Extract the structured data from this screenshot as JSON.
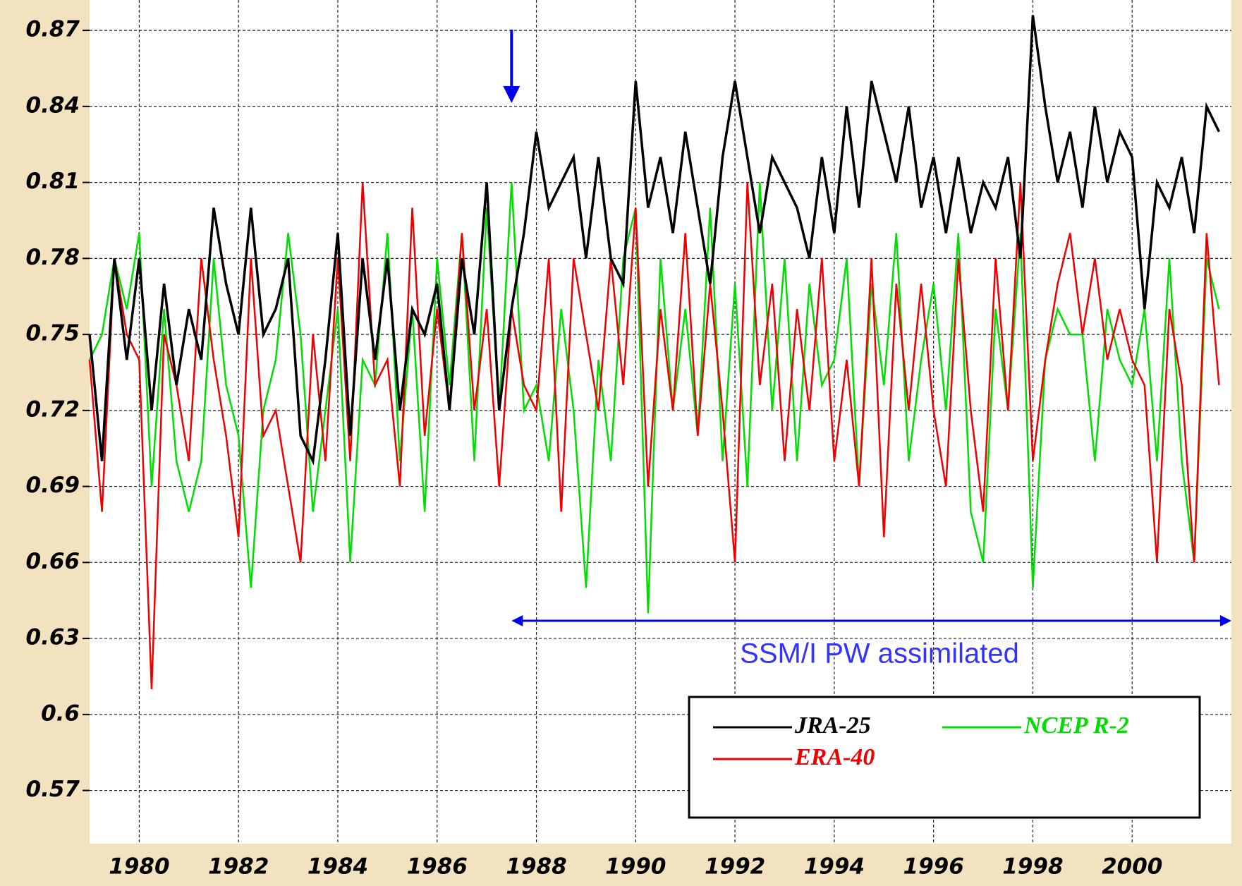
{
  "chart_data": {
    "type": "line",
    "x": [
      1979,
      1979.25,
      1979.5,
      1979.75,
      1980,
      1980.25,
      1980.5,
      1980.75,
      1981,
      1981.25,
      1981.5,
      1981.75,
      1982,
      1982.25,
      1982.5,
      1982.75,
      1983,
      1983.25,
      1983.5,
      1983.75,
      1984,
      1984.25,
      1984.5,
      1984.75,
      1985,
      1985.25,
      1985.5,
      1985.75,
      1986,
      1986.25,
      1986.5,
      1986.75,
      1987,
      1987.25,
      1987.5,
      1987.75,
      1988,
      1988.25,
      1988.5,
      1988.75,
      1989,
      1989.25,
      1989.5,
      1989.75,
      1990,
      1990.25,
      1990.5,
      1990.75,
      1991,
      1991.25,
      1991.5,
      1991.75,
      1992,
      1992.25,
      1992.5,
      1992.75,
      1993,
      1993.25,
      1993.5,
      1993.75,
      1994,
      1994.25,
      1994.5,
      1994.75,
      1995,
      1995.25,
      1995.5,
      1995.75,
      1996,
      1996.25,
      1996.5,
      1996.75,
      1997,
      1997.25,
      1997.5,
      1997.75,
      1998,
      1998.25,
      1998.5,
      1998.75,
      1999,
      1999.25,
      1999.5,
      1999.75,
      2000,
      2000.25,
      2000.5,
      2000.75,
      2001,
      2001.25,
      2001.5,
      2001.75
    ],
    "series": [
      {
        "name": "JRA-25",
        "color": "#000000",
        "values": [
          0.75,
          0.7,
          0.78,
          0.74,
          0.78,
          0.72,
          0.77,
          0.73,
          0.76,
          0.74,
          0.8,
          0.77,
          0.75,
          0.8,
          0.75,
          0.76,
          0.78,
          0.71,
          0.7,
          0.74,
          0.79,
          0.71,
          0.78,
          0.74,
          0.78,
          0.72,
          0.76,
          0.75,
          0.77,
          0.72,
          0.78,
          0.75,
          0.81,
          0.72,
          0.76,
          0.79,
          0.83,
          0.8,
          0.81,
          0.82,
          0.78,
          0.82,
          0.78,
          0.77,
          0.85,
          0.8,
          0.82,
          0.79,
          0.83,
          0.8,
          0.77,
          0.82,
          0.85,
          0.82,
          0.79,
          0.82,
          0.81,
          0.8,
          0.78,
          0.82,
          0.79,
          0.84,
          0.8,
          0.85,
          0.83,
          0.81,
          0.84,
          0.8,
          0.82,
          0.79,
          0.82,
          0.79,
          0.81,
          0.8,
          0.82,
          0.78,
          0.876,
          0.84,
          0.81,
          0.83,
          0.8,
          0.84,
          0.81,
          0.83,
          0.82,
          0.76,
          0.81,
          0.8,
          0.82,
          0.79,
          0.84,
          0.83
        ]
      },
      {
        "name": "ERA-40",
        "color": "#ee0000",
        "values": [
          0.74,
          0.68,
          0.78,
          0.75,
          0.74,
          0.61,
          0.75,
          0.73,
          0.7,
          0.78,
          0.74,
          0.71,
          0.67,
          0.78,
          0.71,
          0.72,
          0.69,
          0.66,
          0.75,
          0.7,
          0.78,
          0.7,
          0.81,
          0.73,
          0.74,
          0.69,
          0.8,
          0.71,
          0.76,
          0.72,
          0.79,
          0.72,
          0.76,
          0.69,
          0.76,
          0.73,
          0.72,
          0.78,
          0.68,
          0.78,
          0.75,
          0.72,
          0.78,
          0.73,
          0.8,
          0.69,
          0.76,
          0.72,
          0.79,
          0.71,
          0.77,
          0.72,
          0.66,
          0.81,
          0.73,
          0.77,
          0.7,
          0.76,
          0.72,
          0.78,
          0.7,
          0.74,
          0.69,
          0.78,
          0.67,
          0.77,
          0.72,
          0.77,
          0.72,
          0.69,
          0.78,
          0.72,
          0.68,
          0.78,
          0.72,
          0.81,
          0.7,
          0.74,
          0.77,
          0.79,
          0.75,
          0.78,
          0.74,
          0.76,
          0.74,
          0.73,
          0.66,
          0.76,
          0.73,
          0.66,
          0.79,
          0.73
        ]
      },
      {
        "name": "NCEP R-2",
        "color": "#00dd00",
        "values": [
          0.74,
          0.75,
          0.78,
          0.76,
          0.79,
          0.69,
          0.76,
          0.7,
          0.68,
          0.7,
          0.78,
          0.73,
          0.71,
          0.65,
          0.72,
          0.74,
          0.79,
          0.75,
          0.68,
          0.72,
          0.76,
          0.66,
          0.74,
          0.73,
          0.79,
          0.7,
          0.76,
          0.68,
          0.78,
          0.73,
          0.79,
          0.7,
          0.8,
          0.72,
          0.81,
          0.72,
          0.73,
          0.7,
          0.76,
          0.72,
          0.65,
          0.74,
          0.7,
          0.78,
          0.8,
          0.64,
          0.78,
          0.72,
          0.76,
          0.71,
          0.8,
          0.7,
          0.77,
          0.69,
          0.81,
          0.72,
          0.78,
          0.7,
          0.77,
          0.73,
          0.74,
          0.78,
          0.69,
          0.77,
          0.73,
          0.79,
          0.7,
          0.74,
          0.77,
          0.72,
          0.79,
          0.68,
          0.66,
          0.76,
          0.72,
          0.79,
          0.65,
          0.74,
          0.76,
          0.75,
          0.75,
          0.7,
          0.76,
          0.74,
          0.73,
          0.76,
          0.7,
          0.78,
          0.7,
          0.66,
          0.78,
          0.76
        ]
      }
    ],
    "xlim": [
      1979,
      2002
    ],
    "ylim": [
      0.549,
      0.882
    ],
    "xticks": [
      1980,
      1982,
      1984,
      1986,
      1988,
      1990,
      1992,
      1994,
      1996,
      1998,
      2000
    ],
    "yticks": [
      0.87,
      0.84,
      0.81,
      0.78,
      0.75,
      0.72,
      0.69,
      0.66,
      0.63,
      0.6,
      0.57
    ],
    "grid": true,
    "legend": "lower right",
    "annotation": {
      "text": "SSM/I PW assimilated",
      "span": [
        1987.5,
        2002
      ],
      "y": 0.637
    }
  }
}
